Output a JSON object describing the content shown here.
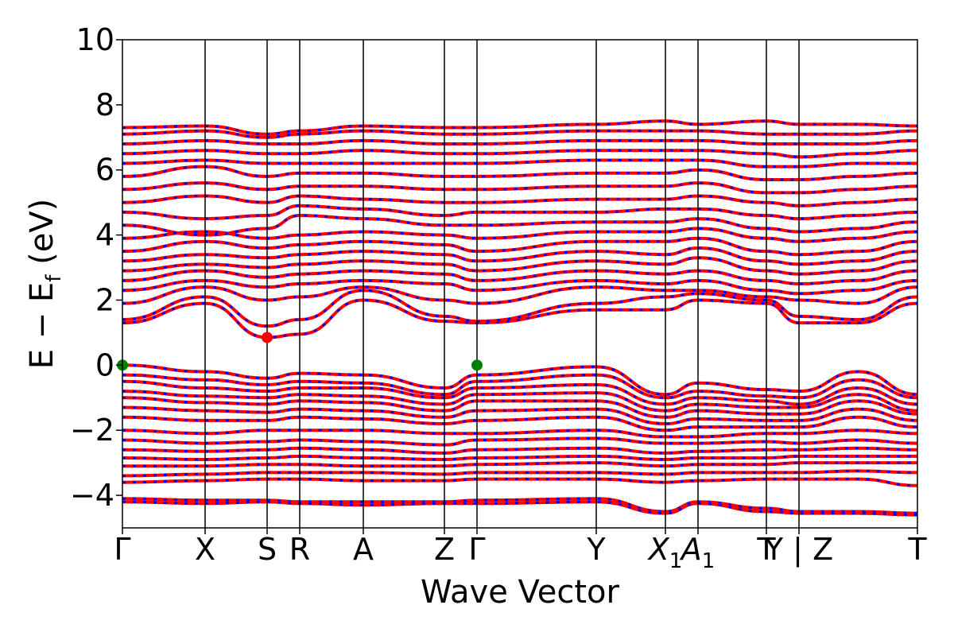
{
  "chart_data": {
    "type": "line",
    "xlabel": "Wave Vector",
    "ylabel_main": "E − E",
    "ylabel_sub": "f",
    "ylabel_unit": " (eV)",
    "ylim": [
      -5,
      10
    ],
    "yticks": [
      10,
      8,
      6,
      4,
      2,
      0,
      -2,
      -4
    ],
    "ytick_labels": [
      "10",
      "8",
      "6",
      "4",
      "2",
      "0",
      "−2",
      "−4"
    ],
    "kpath": {
      "range": [
        0,
        1
      ],
      "ticks": [
        {
          "pos": 0.0,
          "label": "Γ"
        },
        {
          "pos": 0.104,
          "label": "X"
        },
        {
          "pos": 0.182,
          "label": "S"
        },
        {
          "pos": 0.223,
          "label": "R"
        },
        {
          "pos": 0.303,
          "label": "A"
        },
        {
          "pos": 0.405,
          "label": "Z"
        },
        {
          "pos": 0.446,
          "label": "Γ"
        },
        {
          "pos": 0.596,
          "label": "Y"
        },
        {
          "pos": 0.683,
          "label": "X",
          "sub": "1"
        },
        {
          "pos": 0.724,
          "label": "A",
          "sub": "1"
        },
        {
          "pos": 0.81,
          "label": "T"
        },
        {
          "pos": 0.851,
          "label": "Y | Z"
        },
        {
          "pos": 1.0,
          "label": "T"
        }
      ]
    },
    "series": [
      {
        "color": "#ff0000",
        "style": "solid"
      },
      {
        "color": "#0000ff",
        "style": "dashed"
      }
    ],
    "bands": {
      "valence": [
        [
          0.0,
          -0.2,
          -0.4,
          -0.25,
          -0.3,
          -0.7,
          -0.3,
          -0.05,
          -0.9,
          -0.55,
          -0.75,
          -0.8,
          -0.2,
          -0.9
        ],
        [
          -0.3,
          -0.45,
          -0.6,
          -0.5,
          -0.55,
          -0.9,
          -0.5,
          -0.3,
          -1.0,
          -0.8,
          -0.95,
          -1.0,
          -0.45,
          -1.0
        ],
        [
          -0.5,
          -0.7,
          -0.8,
          -0.7,
          -0.7,
          -1.0,
          -0.7,
          -0.6,
          -1.2,
          -1.0,
          -1.1,
          -1.2,
          -0.7,
          -1.2
        ],
        [
          -0.8,
          -0.95,
          -1.0,
          -0.9,
          -0.95,
          -1.2,
          -0.9,
          -0.85,
          -1.4,
          -1.2,
          -1.3,
          -1.3,
          -0.9,
          -1.4
        ],
        [
          -1.0,
          -1.15,
          -1.2,
          -1.1,
          -1.15,
          -1.4,
          -1.1,
          -1.1,
          -1.6,
          -1.4,
          -1.5,
          -1.5,
          -1.1,
          -1.5
        ],
        [
          -1.3,
          -1.4,
          -1.45,
          -1.35,
          -1.4,
          -1.6,
          -1.4,
          -1.35,
          -1.8,
          -1.65,
          -1.7,
          -1.7,
          -1.35,
          -1.7
        ],
        [
          -1.6,
          -1.7,
          -1.7,
          -1.6,
          -1.65,
          -1.8,
          -1.7,
          -1.6,
          -2.0,
          -1.9,
          -1.9,
          -1.9,
          -1.6,
          -1.9
        ],
        [
          -2.0,
          -2.1,
          -2.0,
          -2.0,
          -2.0,
          -2.1,
          -2.1,
          -2.0,
          -2.2,
          -2.2,
          -2.1,
          -2.1,
          -2.0,
          -2.1
        ],
        [
          -2.3,
          -2.4,
          -2.35,
          -2.3,
          -2.35,
          -2.45,
          -2.3,
          -2.25,
          -2.4,
          -2.4,
          -2.35,
          -2.4,
          -2.3,
          -2.4
        ],
        [
          -2.6,
          -2.65,
          -2.6,
          -2.55,
          -2.6,
          -2.7,
          -2.6,
          -2.55,
          -2.7,
          -2.65,
          -2.6,
          -2.6,
          -2.55,
          -2.6
        ],
        [
          -2.85,
          -2.9,
          -2.85,
          -2.8,
          -2.85,
          -2.9,
          -2.85,
          -2.8,
          -2.9,
          -2.85,
          -2.85,
          -2.8,
          -2.8,
          -2.8
        ],
        [
          -3.1,
          -3.1,
          -3.05,
          -3.05,
          -3.1,
          -3.1,
          -3.05,
          -3.0,
          -3.1,
          -3.05,
          -3.05,
          -3.0,
          -3.0,
          -3.0
        ],
        [
          -3.4,
          -3.35,
          -3.3,
          -3.3,
          -3.3,
          -3.35,
          -3.3,
          -3.3,
          -3.35,
          -3.3,
          -3.3,
          -3.3,
          -3.25,
          -3.3
        ],
        [
          -3.6,
          -3.55,
          -3.5,
          -3.5,
          -3.55,
          -3.55,
          -3.5,
          -3.5,
          -3.6,
          -3.55,
          -3.5,
          -3.5,
          -3.5,
          -3.7
        ],
        [
          -4.1,
          -4.15,
          -4.15,
          -4.2,
          -4.2,
          -4.2,
          -4.15,
          -4.1,
          -4.5,
          -4.2,
          -4.4,
          -4.5,
          -4.5,
          -4.55
        ],
        [
          -4.2,
          -4.25,
          -4.2,
          -4.25,
          -4.3,
          -4.25,
          -4.25,
          -4.2,
          -4.55,
          -4.25,
          -4.5,
          -4.55,
          -4.55,
          -4.6
        ]
      ],
      "conduction": [
        [
          1.3,
          1.9,
          0.85,
          0.95,
          2.0,
          1.35,
          1.3,
          1.7,
          1.7,
          2.0,
          1.9,
          1.3,
          1.3,
          1.9
        ],
        [
          1.4,
          2.1,
          1.2,
          1.4,
          2.3,
          1.5,
          1.35,
          1.9,
          2.1,
          2.2,
          2.0,
          1.5,
          1.4,
          2.1
        ],
        [
          1.9,
          2.4,
          2.0,
          2.1,
          2.4,
          2.0,
          1.9,
          2.4,
          2.3,
          2.3,
          2.1,
          2.0,
          1.9,
          2.4
        ],
        [
          2.3,
          2.6,
          2.4,
          2.5,
          2.6,
          2.5,
          2.3,
          2.6,
          2.5,
          2.6,
          2.3,
          2.2,
          2.3,
          2.6
        ],
        [
          2.6,
          2.9,
          2.7,
          2.8,
          2.9,
          2.8,
          2.6,
          2.9,
          2.8,
          2.9,
          2.6,
          2.5,
          2.6,
          2.9
        ],
        [
          2.9,
          3.1,
          3.0,
          3.1,
          3.2,
          3.1,
          2.9,
          3.2,
          3.1,
          3.3,
          2.9,
          2.8,
          2.9,
          3.2
        ],
        [
          3.2,
          3.4,
          3.3,
          3.4,
          3.5,
          3.4,
          3.2,
          3.5,
          3.4,
          3.6,
          3.2,
          3.1,
          3.2,
          3.5
        ],
        [
          3.5,
          3.8,
          3.6,
          3.7,
          3.8,
          3.7,
          3.5,
          3.8,
          3.8,
          3.9,
          3.5,
          3.4,
          3.5,
          3.8
        ],
        [
          3.9,
          4.1,
          3.9,
          4.0,
          4.1,
          4.0,
          3.9,
          4.1,
          4.1,
          4.2,
          3.9,
          3.8,
          3.9,
          4.1
        ],
        [
          4.3,
          4.0,
          4.2,
          4.6,
          4.5,
          4.3,
          4.3,
          4.4,
          4.4,
          4.5,
          4.2,
          4.1,
          4.2,
          4.4
        ],
        [
          4.7,
          4.5,
          4.6,
          4.9,
          4.8,
          4.6,
          4.7,
          4.7,
          4.8,
          4.8,
          4.6,
          4.5,
          4.6,
          4.7
        ],
        [
          5.0,
          5.2,
          5.0,
          5.2,
          5.1,
          5.0,
          5.0,
          5.1,
          5.1,
          5.2,
          5.0,
          4.9,
          5.0,
          5.1
        ],
        [
          5.4,
          5.6,
          5.4,
          5.5,
          5.5,
          5.4,
          5.4,
          5.5,
          5.5,
          5.6,
          5.3,
          5.3,
          5.4,
          5.5
        ],
        [
          5.8,
          6.1,
          5.8,
          5.9,
          5.9,
          5.8,
          5.8,
          5.9,
          5.9,
          6.0,
          5.7,
          5.7,
          5.8,
          5.9
        ],
        [
          6.2,
          6.3,
          6.2,
          6.2,
          6.2,
          6.2,
          6.2,
          6.3,
          6.3,
          6.3,
          6.1,
          6.1,
          6.2,
          6.2
        ],
        [
          6.5,
          6.6,
          6.5,
          6.5,
          6.6,
          6.5,
          6.5,
          6.6,
          6.6,
          6.6,
          6.5,
          6.4,
          6.5,
          6.6
        ],
        [
          6.8,
          6.9,
          6.8,
          6.8,
          6.9,
          6.8,
          6.8,
          6.9,
          6.9,
          6.9,
          6.8,
          6.8,
          6.8,
          6.9
        ],
        [
          7.1,
          7.2,
          7.0,
          7.1,
          7.2,
          7.1,
          7.1,
          7.2,
          7.2,
          7.2,
          7.1,
          7.1,
          7.1,
          7.2
        ],
        [
          7.3,
          7.35,
          7.1,
          7.2,
          7.35,
          7.3,
          7.3,
          7.4,
          7.5,
          7.4,
          7.5,
          7.4,
          7.4,
          7.35
        ]
      ]
    },
    "markers": [
      {
        "k": 0.0,
        "e": 0.0,
        "color": "#008000"
      },
      {
        "k": 0.446,
        "e": 0.0,
        "color": "#008000"
      },
      {
        "k": 0.182,
        "e": 0.85,
        "color": "#ff0000"
      }
    ]
  }
}
